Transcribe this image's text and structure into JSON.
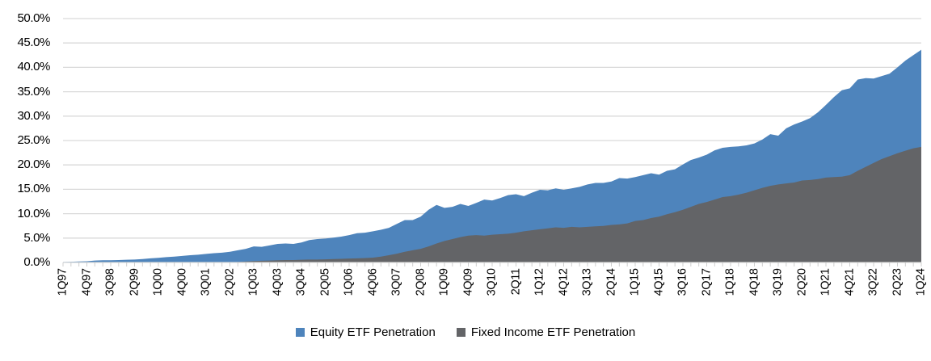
{
  "chart_data": {
    "type": "area",
    "title": "",
    "mode": "overlapping (Fixed Income series drawn in front of Equity series)",
    "frequency": "quarterly",
    "x_start": "1Q97",
    "x_end": "1Q24",
    "ylim": [
      0,
      50
    ],
    "grid": "horizontal gridlines on",
    "legend_position": "bottom-center",
    "y_tick_values": [
      0,
      5,
      10,
      15,
      20,
      25,
      30,
      35,
      40,
      45,
      50
    ],
    "y_tick_labels": [
      "0.0%",
      "5.0%",
      "10.0%",
      "15.0%",
      "20.0%",
      "25.0%",
      "30.0%",
      "35.0%",
      "40.0%",
      "45.0%",
      "50.0%"
    ],
    "x_tick_labels": [
      "1Q97",
      "4Q97",
      "3Q98",
      "2Q99",
      "1Q00",
      "4Q00",
      "3Q01",
      "2Q02",
      "1Q03",
      "4Q03",
      "3Q04",
      "2Q05",
      "1Q06",
      "4Q06",
      "3Q07",
      "2Q08",
      "1Q09",
      "4Q09",
      "3Q10",
      "2Q11",
      "1Q12",
      "4Q12",
      "3Q13",
      "2Q14",
      "1Q15",
      "4Q15",
      "3Q16",
      "2Q17",
      "1Q18",
      "4Q18",
      "3Q19",
      "2Q20",
      "1Q21",
      "4Q21",
      "3Q22",
      "2Q23",
      "1Q24"
    ],
    "x_tick_label_every_n_quarters": 3,
    "series": [
      {
        "name": "Equity ETF Penetration",
        "color": "#4E84BC",
        "values": [
          0.1,
          0.15,
          0.2,
          0.25,
          0.4,
          0.45,
          0.45,
          0.5,
          0.55,
          0.6,
          0.7,
          0.85,
          0.95,
          1.1,
          1.2,
          1.35,
          1.5,
          1.6,
          1.75,
          1.9,
          2.0,
          2.2,
          2.5,
          2.8,
          3.3,
          3.2,
          3.5,
          3.8,
          3.9,
          3.8,
          4.1,
          4.6,
          4.8,
          4.9,
          5.1,
          5.3,
          5.6,
          6.0,
          6.1,
          6.4,
          6.7,
          7.1,
          7.9,
          8.7,
          8.7,
          9.4,
          10.8,
          11.8,
          11.2,
          11.4,
          12.0,
          11.6,
          12.2,
          12.9,
          12.7,
          13.2,
          13.8,
          14.0,
          13.6,
          14.3,
          14.9,
          14.8,
          15.2,
          14.9,
          15.2,
          15.5,
          16.0,
          16.3,
          16.3,
          16.6,
          17.3,
          17.2,
          17.5,
          17.9,
          18.3,
          18.0,
          18.8,
          19.1,
          20.1,
          21.0,
          21.5,
          22.1,
          23.0,
          23.5,
          23.7,
          23.8,
          24.0,
          24.4,
          25.2,
          26.3,
          26.0,
          27.5,
          28.3,
          28.9,
          29.6,
          30.8,
          32.3,
          33.9,
          35.3,
          35.7,
          37.5,
          37.8,
          37.7,
          38.2,
          38.7,
          40.0,
          41.4,
          42.5,
          43.6
        ]
      },
      {
        "name": "Fixed Income ETF Penetration",
        "color": "#636467",
        "values": [
          0,
          0,
          0,
          0,
          0,
          0,
          0,
          0,
          0,
          0,
          0,
          0,
          0,
          0,
          0,
          0,
          0,
          0,
          0,
          0,
          0,
          0,
          0.1,
          0.2,
          0.3,
          0.35,
          0.4,
          0.45,
          0.5,
          0.5,
          0.55,
          0.6,
          0.6,
          0.65,
          0.7,
          0.75,
          0.8,
          0.85,
          0.9,
          1.0,
          1.2,
          1.5,
          1.8,
          2.2,
          2.5,
          2.8,
          3.3,
          3.9,
          4.4,
          4.8,
          5.2,
          5.5,
          5.6,
          5.5,
          5.7,
          5.8,
          5.9,
          6.1,
          6.4,
          6.6,
          6.8,
          7.0,
          7.2,
          7.1,
          7.3,
          7.2,
          7.3,
          7.4,
          7.5,
          7.7,
          7.8,
          8.0,
          8.5,
          8.7,
          9.1,
          9.4,
          9.9,
          10.3,
          10.8,
          11.4,
          12.0,
          12.4,
          12.9,
          13.4,
          13.6,
          13.9,
          14.3,
          14.8,
          15.3,
          15.7,
          16.0,
          16.2,
          16.4,
          16.8,
          16.9,
          17.1,
          17.4,
          17.5,
          17.6,
          17.9,
          18.8,
          19.6,
          20.4,
          21.2,
          21.8,
          22.4,
          22.9,
          23.4,
          23.7
        ]
      }
    ]
  },
  "legend": {
    "items": [
      {
        "label": "Equity ETF Penetration",
        "color": "#4E84BC"
      },
      {
        "label": "Fixed Income ETF Penetration",
        "color": "#636467"
      }
    ]
  },
  "colors": {
    "background": "#FFFFFF",
    "gridline": "#D9D9D9",
    "axis_line": "#D9D9D9",
    "tick": "#CFCFCF",
    "text": "#000000",
    "equity_area": "#4E84BC",
    "fixed_income_area": "#636467"
  }
}
